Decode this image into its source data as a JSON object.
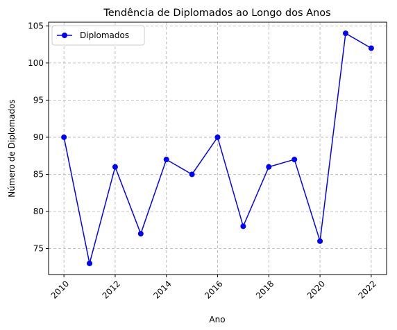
{
  "chart_data": {
    "type": "line",
    "title": "Tendência de Diplomados ao Longo dos Anos",
    "xlabel": "Ano",
    "ylabel": "Número de Diplomados",
    "x": [
      2010,
      2011,
      2012,
      2013,
      2014,
      2015,
      2016,
      2017,
      2018,
      2019,
      2020,
      2021,
      2022
    ],
    "series": [
      {
        "name": "Diplomados",
        "values": [
          90,
          73,
          86,
          77,
          87,
          85,
          90,
          78,
          86,
          87,
          76,
          104,
          102
        ],
        "color": "#0000ff",
        "marker": "circle"
      }
    ],
    "xlim": [
      2009.4,
      2022.6
    ],
    "ylim": [
      71.5,
      105.5
    ],
    "xticks": [
      2010,
      2012,
      2014,
      2016,
      2018,
      2020,
      2022
    ],
    "xtick_rotation": 45,
    "yticks": [
      75,
      80,
      85,
      90,
      95,
      100,
      105
    ],
    "grid": true,
    "legend_position": "top-left"
  }
}
